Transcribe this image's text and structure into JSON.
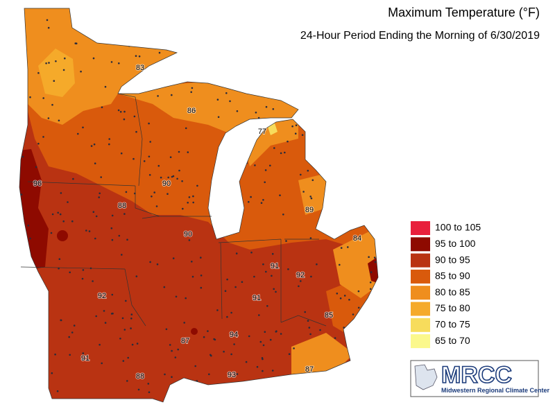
{
  "title": "Maximum Temperature (°F)",
  "subtitle": "24-Hour Period Ending the Morning of 6/30/2019",
  "legend": [
    {
      "label": "100 to 105",
      "color": "#e8203c"
    },
    {
      "label": "95 to 100",
      "color": "#8e0a00"
    },
    {
      "label": "90 to 95",
      "color": "#b93312"
    },
    {
      "label": "85 to 90",
      "color": "#d95a0c"
    },
    {
      "label": "80 to 85",
      "color": "#ef8e1e"
    },
    {
      "label": "75 to 80",
      "color": "#f5aa2a"
    },
    {
      "label": "70 to 75",
      "color": "#f7dc5c"
    },
    {
      "label": "65 to 70",
      "color": "#fbf88c"
    }
  ],
  "station_labels": [
    "83",
    "86",
    "77",
    "96",
    "90",
    "88",
    "89",
    "90",
    "84",
    "91",
    "92",
    "92",
    "91",
    "85",
    "87",
    "94",
    "91",
    "88",
    "93",
    "87"
  ],
  "logo": {
    "abbr": "MRCC",
    "name": "Midwestern Regional Climate Center"
  }
}
